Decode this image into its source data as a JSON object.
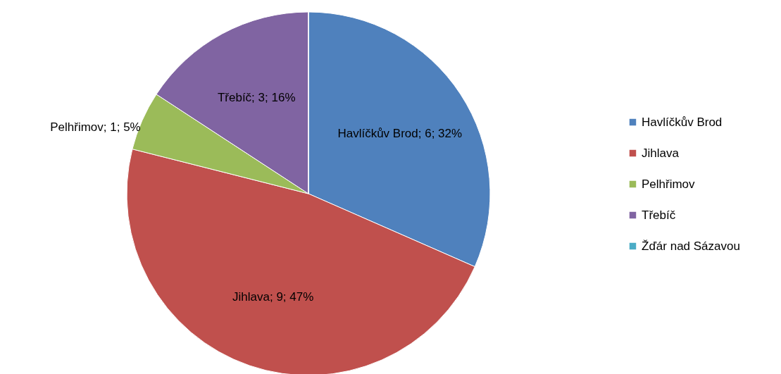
{
  "chart_data": {
    "type": "pie",
    "categories": [
      "Havlíčkův Brod",
      "Jihlava",
      "Pelhřimov",
      "Třebíč",
      "Žďár nad Sázavou"
    ],
    "values": [
      6,
      9,
      1,
      3,
      0
    ],
    "colors": [
      "#4f81bd",
      "#c0504d",
      "#9bbb59",
      "#8064a2",
      "#4bacc6"
    ],
    "value_labels": [
      "Havlíčkův Brod; 6; 32%",
      "Jihlava; 9; 47%",
      "Pelhřimov; 1; 5%",
      "Třebíč; 3; 16%",
      null
    ],
    "legend": "right"
  }
}
